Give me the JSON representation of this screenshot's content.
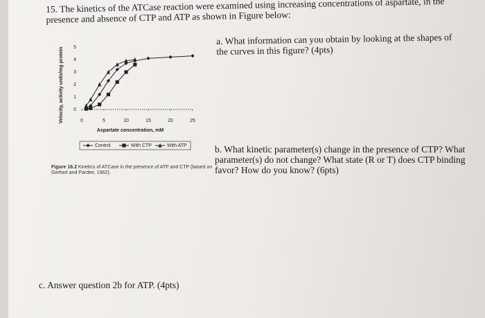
{
  "question": {
    "text": "15. The kinetics of the ATCase reaction were examined using increasing concentrations of aspartate, in the presence and absence of CTP and ATP as shown in Figure below:"
  },
  "parts": [
    {
      "text": "a. What information can you obtain by looking at the shapes of the curves in this figure? (4pts)"
    },
    {
      "text": "b. What kinetic parameter(s) change in the presence of CTP? What parameter(s) do not change? What state (R or T) does CTP binding favor? How do you know? (6pts)"
    },
    {
      "text": "c. Answer question 2b for ATP. (4pts)"
    }
  ],
  "figure": {
    "caption_label": "Figure 16.2",
    "caption": "Kinetics of ATCase in the presence of ATP and CTP (based on Gerhart and Pardee, 1962).",
    "chart_data": {
      "type": "line",
      "xlabel": "Aspartate concentration, mM",
      "ylabel": "Velocity, activity units/mg protein",
      "x": [
        1,
        2,
        4,
        6,
        8,
        10,
        12,
        15,
        20,
        25
      ],
      "series": [
        {
          "name": "Control",
          "color": "#222222",
          "marker": "diamond",
          "values": [
            0.1,
            0.3,
            1.2,
            2.3,
            3.2,
            3.7,
            3.9,
            4.1,
            4.2,
            4.3
          ]
        },
        {
          "name": "With CTP",
          "color": "#222222",
          "marker": "square",
          "values": [
            0.05,
            0.1,
            0.4,
            1.2,
            2.2,
            3.0,
            3.6,
            null,
            null,
            null
          ]
        },
        {
          "name": "With ATP",
          "color": "#222222",
          "marker": "triangle",
          "values": [
            0.3,
            0.8,
            2.0,
            3.0,
            3.6,
            3.9,
            4.0,
            null,
            null,
            null
          ]
        }
      ],
      "xlim": [
        0,
        25
      ],
      "xticks": [
        0,
        5,
        10,
        15,
        20,
        25
      ],
      "ylim": [
        0,
        5
      ],
      "yticks": [
        0,
        1,
        2,
        3,
        4,
        5
      ]
    }
  }
}
